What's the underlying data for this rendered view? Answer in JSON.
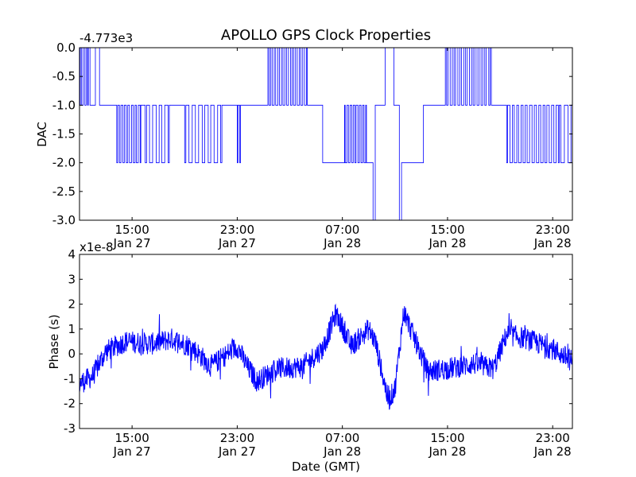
{
  "figure": {
    "title": "APOLLO GPS Clock Properties",
    "background": "#ffffff",
    "line_color": "#0000ff"
  },
  "chart_data": [
    {
      "type": "line",
      "title": "APOLLO GPS Clock Properties",
      "ylabel": "DAC",
      "xlabel": "",
      "offset_label": "-4.773e3",
      "x_range": [
        "2010-01-27T11:00",
        "2010-01-29T00:30"
      ],
      "ylim": [
        -3.0,
        0.0
      ],
      "yticks": [
        "0.0",
        "-0.5",
        "-1.0",
        "-1.5",
        "-2.0",
        "-2.5",
        "-3.0"
      ],
      "xticks": [
        {
          "time": "15:00",
          "date": "Jan 27"
        },
        {
          "time": "23:00",
          "date": "Jan 27"
        },
        {
          "time": "07:00",
          "date": "Jan 28"
        },
        {
          "time": "15:00",
          "date": "Jan 28"
        },
        {
          "time": "23:00",
          "date": "Jan 28"
        }
      ],
      "grid": false,
      "series": [
        {
          "color": "#0000ff",
          "segments": [
            {
              "start": "2010-01-27T11:00",
              "end": "2010-01-27T11:40",
              "level": -1.0,
              "toggles": [
                0.0
              ],
              "density": 6
            },
            {
              "start": "2010-01-27T11:40",
              "end": "2010-01-27T12:40",
              "level": 0.0,
              "toggles": [
                -1.0
              ],
              "density": 3
            },
            {
              "start": "2010-01-27T12:40",
              "end": "2010-01-27T13:50",
              "level": -1.0,
              "toggles": [],
              "density": 0
            },
            {
              "start": "2010-01-27T13:50",
              "end": "2010-01-27T15:40",
              "level": -2.0,
              "toggles": [
                -1.0
              ],
              "density": 14
            },
            {
              "start": "2010-01-27T15:40",
              "end": "2010-01-27T16:00",
              "level": -1.0,
              "toggles": [],
              "density": 0
            },
            {
              "start": "2010-01-27T16:00",
              "end": "2010-01-27T17:50",
              "level": -2.0,
              "toggles": [
                -1.0
              ],
              "density": 8
            },
            {
              "start": "2010-01-27T17:50",
              "end": "2010-01-27T19:00",
              "level": -1.0,
              "toggles": [],
              "density": 0
            },
            {
              "start": "2010-01-27T19:00",
              "end": "2010-01-27T21:50",
              "level": -2.0,
              "toggles": [
                -1.0
              ],
              "density": 12
            },
            {
              "start": "2010-01-27T21:50",
              "end": "2010-01-27T23:00",
              "level": -1.0,
              "toggles": [],
              "density": 0
            },
            {
              "start": "2010-01-27T23:00",
              "end": "2010-01-27T23:15",
              "level": -2.0,
              "toggles": [
                -1.0
              ],
              "density": 2
            },
            {
              "start": "2010-01-27T23:15",
              "end": "2010-01-28T01:20",
              "level": -1.0,
              "toggles": [],
              "density": 0
            },
            {
              "start": "2010-01-28T01:20",
              "end": "2010-01-28T04:20",
              "level": 0.0,
              "toggles": [
                -1.0
              ],
              "density": 22
            },
            {
              "start": "2010-01-28T04:20",
              "end": "2010-01-28T05:30",
              "level": -1.0,
              "toggles": [],
              "density": 0
            },
            {
              "start": "2010-01-28T05:30",
              "end": "2010-01-28T07:10",
              "level": -2.0,
              "toggles": [],
              "density": 0
            },
            {
              "start": "2010-01-28T07:10",
              "end": "2010-01-28T08:50",
              "level": -1.0,
              "toggles": [
                -2.0
              ],
              "density": 14
            },
            {
              "start": "2010-01-28T08:50",
              "end": "2010-01-28T09:20",
              "level": -2.0,
              "toggles": [],
              "density": 0
            },
            {
              "start": "2010-01-28T09:20",
              "end": "2010-01-28T09:30",
              "level": -3.0,
              "toggles": [],
              "density": 0
            },
            {
              "start": "2010-01-28T09:30",
              "end": "2010-01-28T10:15",
              "level": -1.0,
              "toggles": [],
              "density": 0
            },
            {
              "start": "2010-01-28T10:15",
              "end": "2010-01-28T10:55",
              "level": 0.0,
              "toggles": [],
              "density": 0
            },
            {
              "start": "2010-01-28T10:55",
              "end": "2010-01-28T11:20",
              "level": -1.0,
              "toggles": [],
              "density": 0
            },
            {
              "start": "2010-01-28T11:20",
              "end": "2010-01-28T11:30",
              "level": -3.0,
              "toggles": [],
              "density": 0
            },
            {
              "start": "2010-01-28T11:30",
              "end": "2010-01-28T13:10",
              "level": -2.0,
              "toggles": [],
              "density": 0
            },
            {
              "start": "2010-01-28T13:10",
              "end": "2010-01-28T14:50",
              "level": -1.0,
              "toggles": [],
              "density": 0
            },
            {
              "start": "2010-01-28T14:50",
              "end": "2010-01-28T18:20",
              "level": 0.0,
              "toggles": [
                -1.0
              ],
              "density": 24
            },
            {
              "start": "2010-01-28T18:20",
              "end": "2010-01-28T19:30",
              "level": -1.0,
              "toggles": [],
              "density": 0
            },
            {
              "start": "2010-01-28T19:30",
              "end": "2010-01-28T23:30",
              "level": -2.0,
              "toggles": [
                -1.0
              ],
              "density": 24
            },
            {
              "start": "2010-01-28T23:30",
              "end": "2010-01-29T00:30",
              "level": -1.0,
              "toggles": [
                -2.0
              ],
              "density": 4
            }
          ]
        }
      ]
    },
    {
      "type": "line",
      "title": "",
      "ylabel": "Phase (s)",
      "xlabel": "Date (GMT)",
      "offset_label": "x1e-8",
      "x_range": [
        "2010-01-27T11:00",
        "2010-01-29T00:30"
      ],
      "ylim": [
        -3,
        4
      ],
      "yticks": [
        "4",
        "3",
        "2",
        "1",
        "0",
        "-1",
        "-2",
        "-3"
      ],
      "xticks": [
        {
          "time": "15:00",
          "date": "Jan 27"
        },
        {
          "time": "23:00",
          "date": "Jan 27"
        },
        {
          "time": "07:00",
          "date": "Jan 28"
        },
        {
          "time": "15:00",
          "date": "Jan 28"
        },
        {
          "time": "23:00",
          "date": "Jan 28"
        }
      ],
      "grid": false,
      "series": [
        {
          "color": "#0000ff",
          "noise_amplitude": 0.45,
          "trend": [
            {
              "x": "2010-01-27T11:00",
              "y": -1.2
            },
            {
              "x": "2010-01-27T12:00",
              "y": -0.9
            },
            {
              "x": "2010-01-27T13:00",
              "y": 0.1
            },
            {
              "x": "2010-01-27T14:30",
              "y": 0.5
            },
            {
              "x": "2010-01-27T16:30",
              "y": 0.4
            },
            {
              "x": "2010-01-27T18:00",
              "y": 0.6
            },
            {
              "x": "2010-01-27T19:30",
              "y": 0.3
            },
            {
              "x": "2010-01-27T21:00",
              "y": -0.5
            },
            {
              "x": "2010-01-27T23:00",
              "y": 0.3
            },
            {
              "x": "2010-01-27T23:45",
              "y": -0.5
            },
            {
              "x": "2010-01-28T00:30",
              "y": -1.1
            },
            {
              "x": "2010-01-28T02:00",
              "y": -0.6
            },
            {
              "x": "2010-01-28T04:00",
              "y": -0.5
            },
            {
              "x": "2010-01-28T05:30",
              "y": 0.2
            },
            {
              "x": "2010-01-28T06:30",
              "y": 1.6
            },
            {
              "x": "2010-01-28T07:00",
              "y": 1.1
            },
            {
              "x": "2010-01-28T07:40",
              "y": 0.3
            },
            {
              "x": "2010-01-28T09:00",
              "y": 1.0
            },
            {
              "x": "2010-01-28T09:30",
              "y": 0.5
            },
            {
              "x": "2010-01-28T10:30",
              "y": -1.9
            },
            {
              "x": "2010-01-28T11:00",
              "y": -1.4
            },
            {
              "x": "2010-01-28T11:40",
              "y": 1.7
            },
            {
              "x": "2010-01-28T12:30",
              "y": 0.6
            },
            {
              "x": "2010-01-28T13:30",
              "y": -0.7
            },
            {
              "x": "2010-01-28T15:00",
              "y": -0.6
            },
            {
              "x": "2010-01-28T17:00",
              "y": -0.4
            },
            {
              "x": "2010-01-28T18:30",
              "y": -0.6
            },
            {
              "x": "2010-01-28T19:30",
              "y": 0.8
            },
            {
              "x": "2010-01-28T21:00",
              "y": 0.6
            },
            {
              "x": "2010-01-28T23:00",
              "y": 0.2
            },
            {
              "x": "2010-01-29T00:30",
              "y": -0.3
            }
          ]
        }
      ]
    }
  ]
}
